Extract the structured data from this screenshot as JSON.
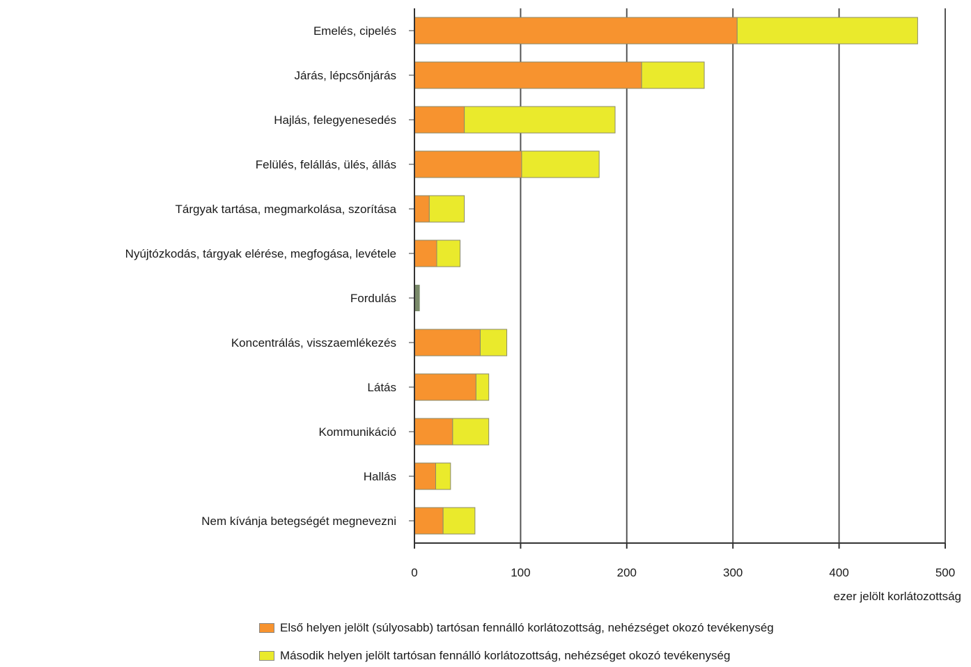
{
  "chart_data": {
    "type": "bar",
    "orientation": "horizontal",
    "stacked": true,
    "categories": [
      "Emelés, cipelés",
      "Járás, lépcsőnjárás",
      "Hajlás, felegyenesedés",
      "Felülés, felállás, ülés, állás",
      "Tárgyak tartása, megmarkolása, szorítása",
      "Nyújtózkodás, tárgyak elérése, megfogása, levétele",
      "Fordulás",
      "Koncentrálás, visszaemlékezés",
      "Látás",
      "Kommunikáció",
      "Hallás",
      "Nem kívánja betegségét megnevezni"
    ],
    "series": [
      {
        "name": "Első helyen jelölt (súlyosabb) tartósan fennálló korlátozottság, nehézséget okozó tevékenység",
        "color": "#f7932f",
        "values": [
          304,
          214,
          47,
          101,
          14,
          21,
          0,
          62,
          58,
          36,
          20,
          27
        ]
      },
      {
        "name": "Második helyen jelölt tartósan fennálló korlátozottság, nehézséget okozó tevékenység",
        "color": "#eaea2c",
        "values": [
          170,
          59,
          142,
          73,
          33,
          22,
          0,
          25,
          12,
          34,
          14,
          30
        ]
      }
    ],
    "extra_segments": [
      {
        "category_index": 6,
        "value": 5,
        "color": "#7a8a6a"
      }
    ],
    "xlabel": "ezer jelölt korlátozottság",
    "ylabel": "",
    "xlim": [
      0,
      500
    ],
    "xticks": [
      "0",
      "100",
      "200",
      "300",
      "400",
      "500"
    ],
    "grid": true,
    "legend_position": "bottom"
  }
}
